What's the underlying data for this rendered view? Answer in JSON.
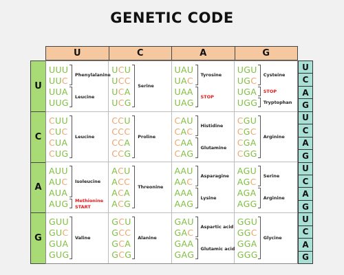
{
  "title": "GENETIC CODE",
  "first_bases": [
    "U",
    "C",
    "A",
    "G"
  ],
  "second_bases": [
    "U",
    "C",
    "A",
    "G"
  ],
  "third_bases": [
    "U",
    "C",
    "A",
    "G",
    "U",
    "C",
    "A",
    "G",
    "U",
    "C",
    "A",
    "G",
    "U",
    "C",
    "A",
    "G"
  ],
  "colors": {
    "U": "#7fbf3f",
    "C": "#efa56a",
    "A": "#7fbf3f",
    "G": "#7fbf3f",
    "header_orange": "#f6c8a0",
    "left_green": "#a8da75",
    "right_teal": "#a9e0d5",
    "stop_red": "#e0181b"
  },
  "cells": [
    {
      "codons": [
        "UUU",
        "UUC",
        "UUA",
        "UUG"
      ],
      "labels": [
        {
          "text": "Phenylalanine",
          "span": [
            0,
            1
          ]
        },
        {
          "text": "Leucine",
          "span": [
            2,
            3
          ]
        }
      ]
    },
    {
      "codons": [
        "UCU",
        "UCC",
        "UCA",
        "UCG"
      ],
      "labels": [
        {
          "text": "Serine",
          "span": [
            0,
            3
          ]
        }
      ]
    },
    {
      "codons": [
        "UAU",
        "UAC",
        "UAA",
        "UAG"
      ],
      "labels": [
        {
          "text": "Tyrosine",
          "span": [
            0,
            1
          ]
        },
        {
          "text": "STOP",
          "span": [
            2,
            3
          ],
          "red": true
        }
      ]
    },
    {
      "codons": [
        "UGU",
        "UGC",
        "UGA",
        "UGG"
      ],
      "labels": [
        {
          "text": "Cysteine",
          "span": [
            0,
            1
          ]
        },
        {
          "text": "STOP",
          "span": [
            2,
            2
          ],
          "red": true
        },
        {
          "text": "Tryptophan",
          "span": [
            3,
            3
          ]
        }
      ]
    },
    {
      "codons": [
        "CUU",
        "CUC",
        "CUA",
        "CUG"
      ],
      "labels": [
        {
          "text": "Leucine",
          "span": [
            0,
            3
          ]
        }
      ]
    },
    {
      "codons": [
        "CCU",
        "CCC",
        "CCA",
        "CCG"
      ],
      "labels": [
        {
          "text": "Proline",
          "span": [
            0,
            3
          ]
        }
      ]
    },
    {
      "codons": [
        "CAU",
        "CAC",
        "CAA",
        "CAG"
      ],
      "labels": [
        {
          "text": "Histidine",
          "span": [
            0,
            1
          ]
        },
        {
          "text": "Glutamine",
          "span": [
            2,
            3
          ]
        }
      ]
    },
    {
      "codons": [
        "CGU",
        "CGC",
        "CGA",
        "CGG"
      ],
      "labels": [
        {
          "text": "Arginine",
          "span": [
            0,
            3
          ]
        }
      ]
    },
    {
      "codons": [
        "AUU",
        "AUC",
        "AUA",
        "AUG"
      ],
      "labels": [
        {
          "text": "Isoleucine",
          "span": [
            0,
            2
          ]
        },
        {
          "text": "Methionine",
          "span": [
            3,
            3
          ],
          "red": true,
          "sub": "START"
        }
      ]
    },
    {
      "codons": [
        "ACU",
        "ACC",
        "ACA",
        "ACG"
      ],
      "labels": [
        {
          "text": "Threonine",
          "span": [
            0,
            3
          ]
        }
      ]
    },
    {
      "codons": [
        "AAU",
        "AAC",
        "AAA",
        "AAG"
      ],
      "labels": [
        {
          "text": "Asparagine",
          "span": [
            0,
            1
          ]
        },
        {
          "text": "Lysine",
          "span": [
            2,
            3
          ]
        }
      ]
    },
    {
      "codons": [
        "AGU",
        "AGC",
        "AGA",
        "AGG"
      ],
      "labels": [
        {
          "text": "Serine",
          "span": [
            0,
            1
          ]
        },
        {
          "text": "Arginine",
          "span": [
            2,
            3
          ]
        }
      ]
    },
    {
      "codons": [
        "GUU",
        "GUC",
        "GUA",
        "GUG"
      ],
      "labels": [
        {
          "text": "Valine",
          "span": [
            0,
            3
          ]
        }
      ]
    },
    {
      "codons": [
        "GCU",
        "GCC",
        "GCA",
        "GCG"
      ],
      "labels": [
        {
          "text": "Alanine",
          "span": [
            0,
            3
          ]
        }
      ]
    },
    {
      "codons": [
        "GAU",
        "GAC",
        "GAA",
        "GAG"
      ],
      "labels": [
        {
          "text": "Aspartic acid",
          "span": [
            0,
            1
          ]
        },
        {
          "text": "Glutamic acid",
          "span": [
            2,
            3
          ]
        }
      ]
    },
    {
      "codons": [
        "GGU",
        "GGC",
        "GGA",
        "GGG"
      ],
      "labels": [
        {
          "text": "Glycine",
          "span": [
            0,
            3
          ]
        }
      ]
    }
  ]
}
